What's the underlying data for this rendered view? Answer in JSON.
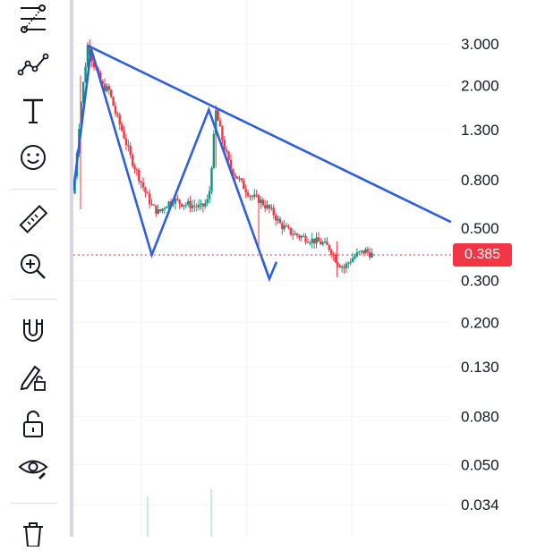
{
  "toolbar": {
    "tools": [
      {
        "name": "fib-retracement-icon"
      },
      {
        "name": "pattern-tool-icon"
      },
      {
        "name": "text-tool-icon"
      },
      {
        "name": "emoji-icon"
      },
      {
        "name": "ruler-icon"
      },
      {
        "name": "zoom-in-icon"
      },
      {
        "name": "magnet-icon"
      },
      {
        "name": "lock-drawing-icon"
      },
      {
        "name": "unlock-icon"
      },
      {
        "name": "eye-icon"
      },
      {
        "name": "trash-icon"
      }
    ]
  },
  "chart_data": {
    "type": "candlestick",
    "y_scale": "log",
    "y_ticks": [
      "3.000",
      "2.000",
      "1.300",
      "0.800",
      "0.500",
      "0.300",
      "0.200",
      "0.130",
      "0.080",
      "0.050",
      "0.034"
    ],
    "y_tick_values": [
      3.0,
      2.0,
      1.3,
      0.8,
      0.5,
      0.3,
      0.2,
      0.13,
      0.08,
      0.05,
      0.034
    ],
    "current_price": 0.385,
    "current_price_label": "0.385",
    "candle_color_up": "#089981",
    "candle_color_down": "#f23645",
    "drawing_color": "#2f5fdb",
    "price_line_color": "#f23645",
    "price_path": [
      [
        0,
        0.7
      ],
      [
        2,
        1.6
      ],
      [
        4,
        2.95
      ],
      [
        6,
        2.4
      ],
      [
        8,
        2.0
      ],
      [
        10,
        1.9
      ],
      [
        12,
        1.5
      ],
      [
        14,
        1.25
      ],
      [
        16,
        1.0
      ],
      [
        18,
        0.85
      ],
      [
        20,
        0.72
      ],
      [
        22,
        0.62
      ],
      [
        24,
        0.58
      ],
      [
        26,
        0.63
      ],
      [
        28,
        0.66
      ],
      [
        30,
        0.64
      ],
      [
        32,
        0.63
      ],
      [
        34,
        0.62
      ],
      [
        36,
        0.61
      ],
      [
        38,
        0.66
      ],
      [
        40,
        1.55
      ],
      [
        42,
        1.15
      ],
      [
        44,
        0.9
      ],
      [
        46,
        0.82
      ],
      [
        48,
        0.74
      ],
      [
        50,
        0.68
      ],
      [
        52,
        0.66
      ],
      [
        54,
        0.62
      ],
      [
        56,
        0.58
      ],
      [
        58,
        0.52
      ],
      [
        60,
        0.49
      ],
      [
        62,
        0.47
      ],
      [
        64,
        0.46
      ],
      [
        66,
        0.45
      ],
      [
        68,
        0.44
      ],
      [
        70,
        0.43
      ],
      [
        72,
        0.41
      ],
      [
        74,
        0.36
      ],
      [
        76,
        0.34
      ],
      [
        78,
        0.37
      ],
      [
        80,
        0.39
      ],
      [
        82,
        0.4
      ],
      [
        84,
        0.385
      ]
    ],
    "trendline": {
      "from": [
        4,
        2.95
      ],
      "to": [
        106,
        0.53
      ]
    },
    "pattern": [
      [
        0,
        0.72
      ],
      [
        5,
        2.85
      ],
      [
        22,
        0.385
      ],
      [
        38,
        1.58
      ],
      [
        55,
        0.305
      ],
      [
        57,
        0.36
      ]
    ],
    "pattern_arrow_head": [
      [
        53,
        0.37
      ],
      [
        55,
        0.305
      ],
      [
        57,
        0.36
      ]
    ],
    "x_domain": [
      0,
      106
    ]
  }
}
